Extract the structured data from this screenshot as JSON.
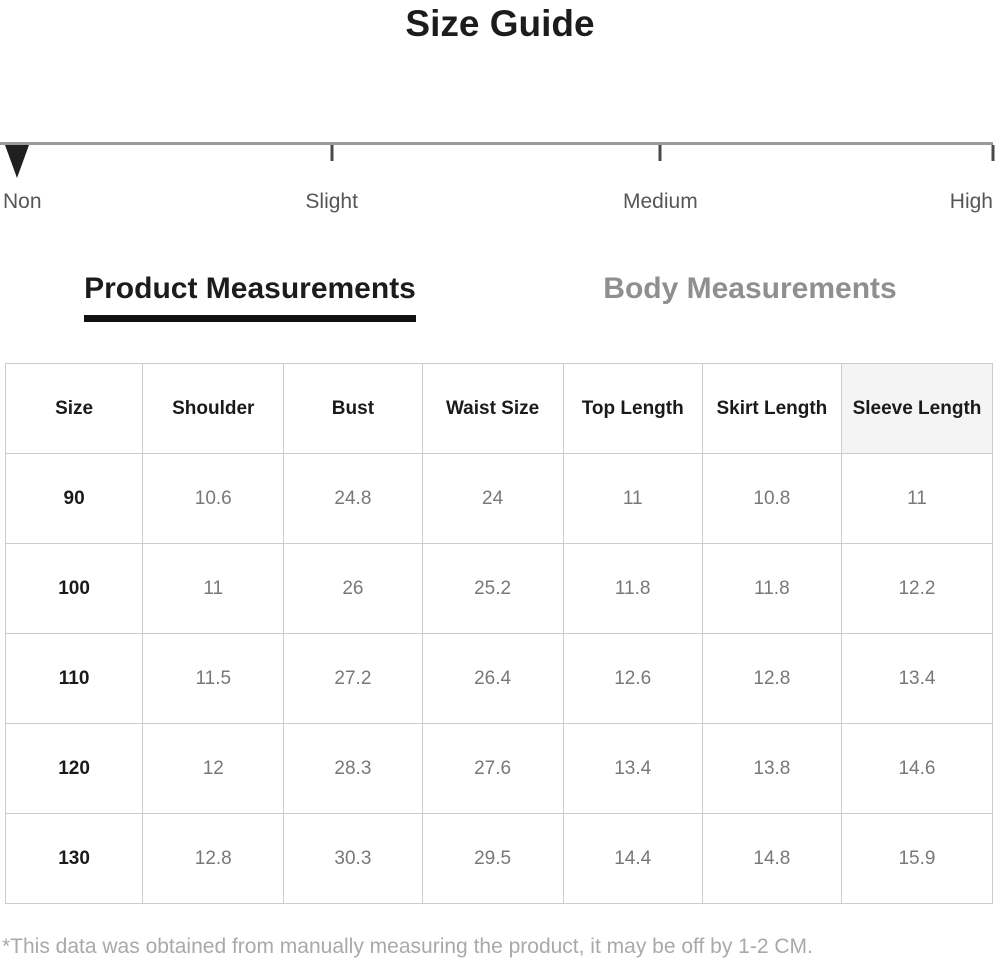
{
  "page": {
    "title": "Size Guide"
  },
  "fit_scale": {
    "selected": "Non",
    "pointer_position_pct": 0.5,
    "ticks": [
      33.4,
      66.5,
      100
    ],
    "labels": [
      {
        "text": "Non",
        "pos": 0.3,
        "align": "left"
      },
      {
        "text": "Slight",
        "pos": 33.4,
        "align": "center"
      },
      {
        "text": "Medium",
        "pos": 66.5,
        "align": "center"
      },
      {
        "text": "High",
        "pos": 100,
        "align": "right"
      }
    ]
  },
  "tabs": [
    {
      "label": "Product Measurements",
      "active": true
    },
    {
      "label": "Body Measurements",
      "active": false
    }
  ],
  "table": {
    "columns": [
      "Size",
      "Shoulder",
      "Bust",
      "Waist Size",
      "Top Length",
      "Skirt Length",
      "Sleeve Length"
    ],
    "column_widths_pct": [
      13.9,
      14.3,
      14.0,
      14.3,
      14.1,
      14.1,
      15.3
    ],
    "rows": [
      [
        "90",
        "10.6",
        "24.8",
        "24",
        "11",
        "10.8",
        "11"
      ],
      [
        "100",
        "11",
        "26",
        "25.2",
        "11.8",
        "11.8",
        "12.2"
      ],
      [
        "110",
        "11.5",
        "27.2",
        "26.4",
        "12.6",
        "12.8",
        "13.4"
      ],
      [
        "120",
        "12",
        "28.3",
        "27.6",
        "13.4",
        "13.8",
        "14.6"
      ],
      [
        "130",
        "12.8",
        "30.3",
        "29.5",
        "14.4",
        "14.8",
        "15.9"
      ]
    ]
  },
  "footnote": "*This data was obtained from manually measuring the product, it may be off by 1-2 CM.",
  "colors": {
    "active_tab": "#1c1c1c",
    "inactive_tab": "#8f8f8f",
    "value_text": "#787878",
    "border": "#cccccc",
    "footnote_text": "#a9a9a9",
    "scale_line": "#9a9a9a",
    "pointer": "#1f1f1f"
  }
}
